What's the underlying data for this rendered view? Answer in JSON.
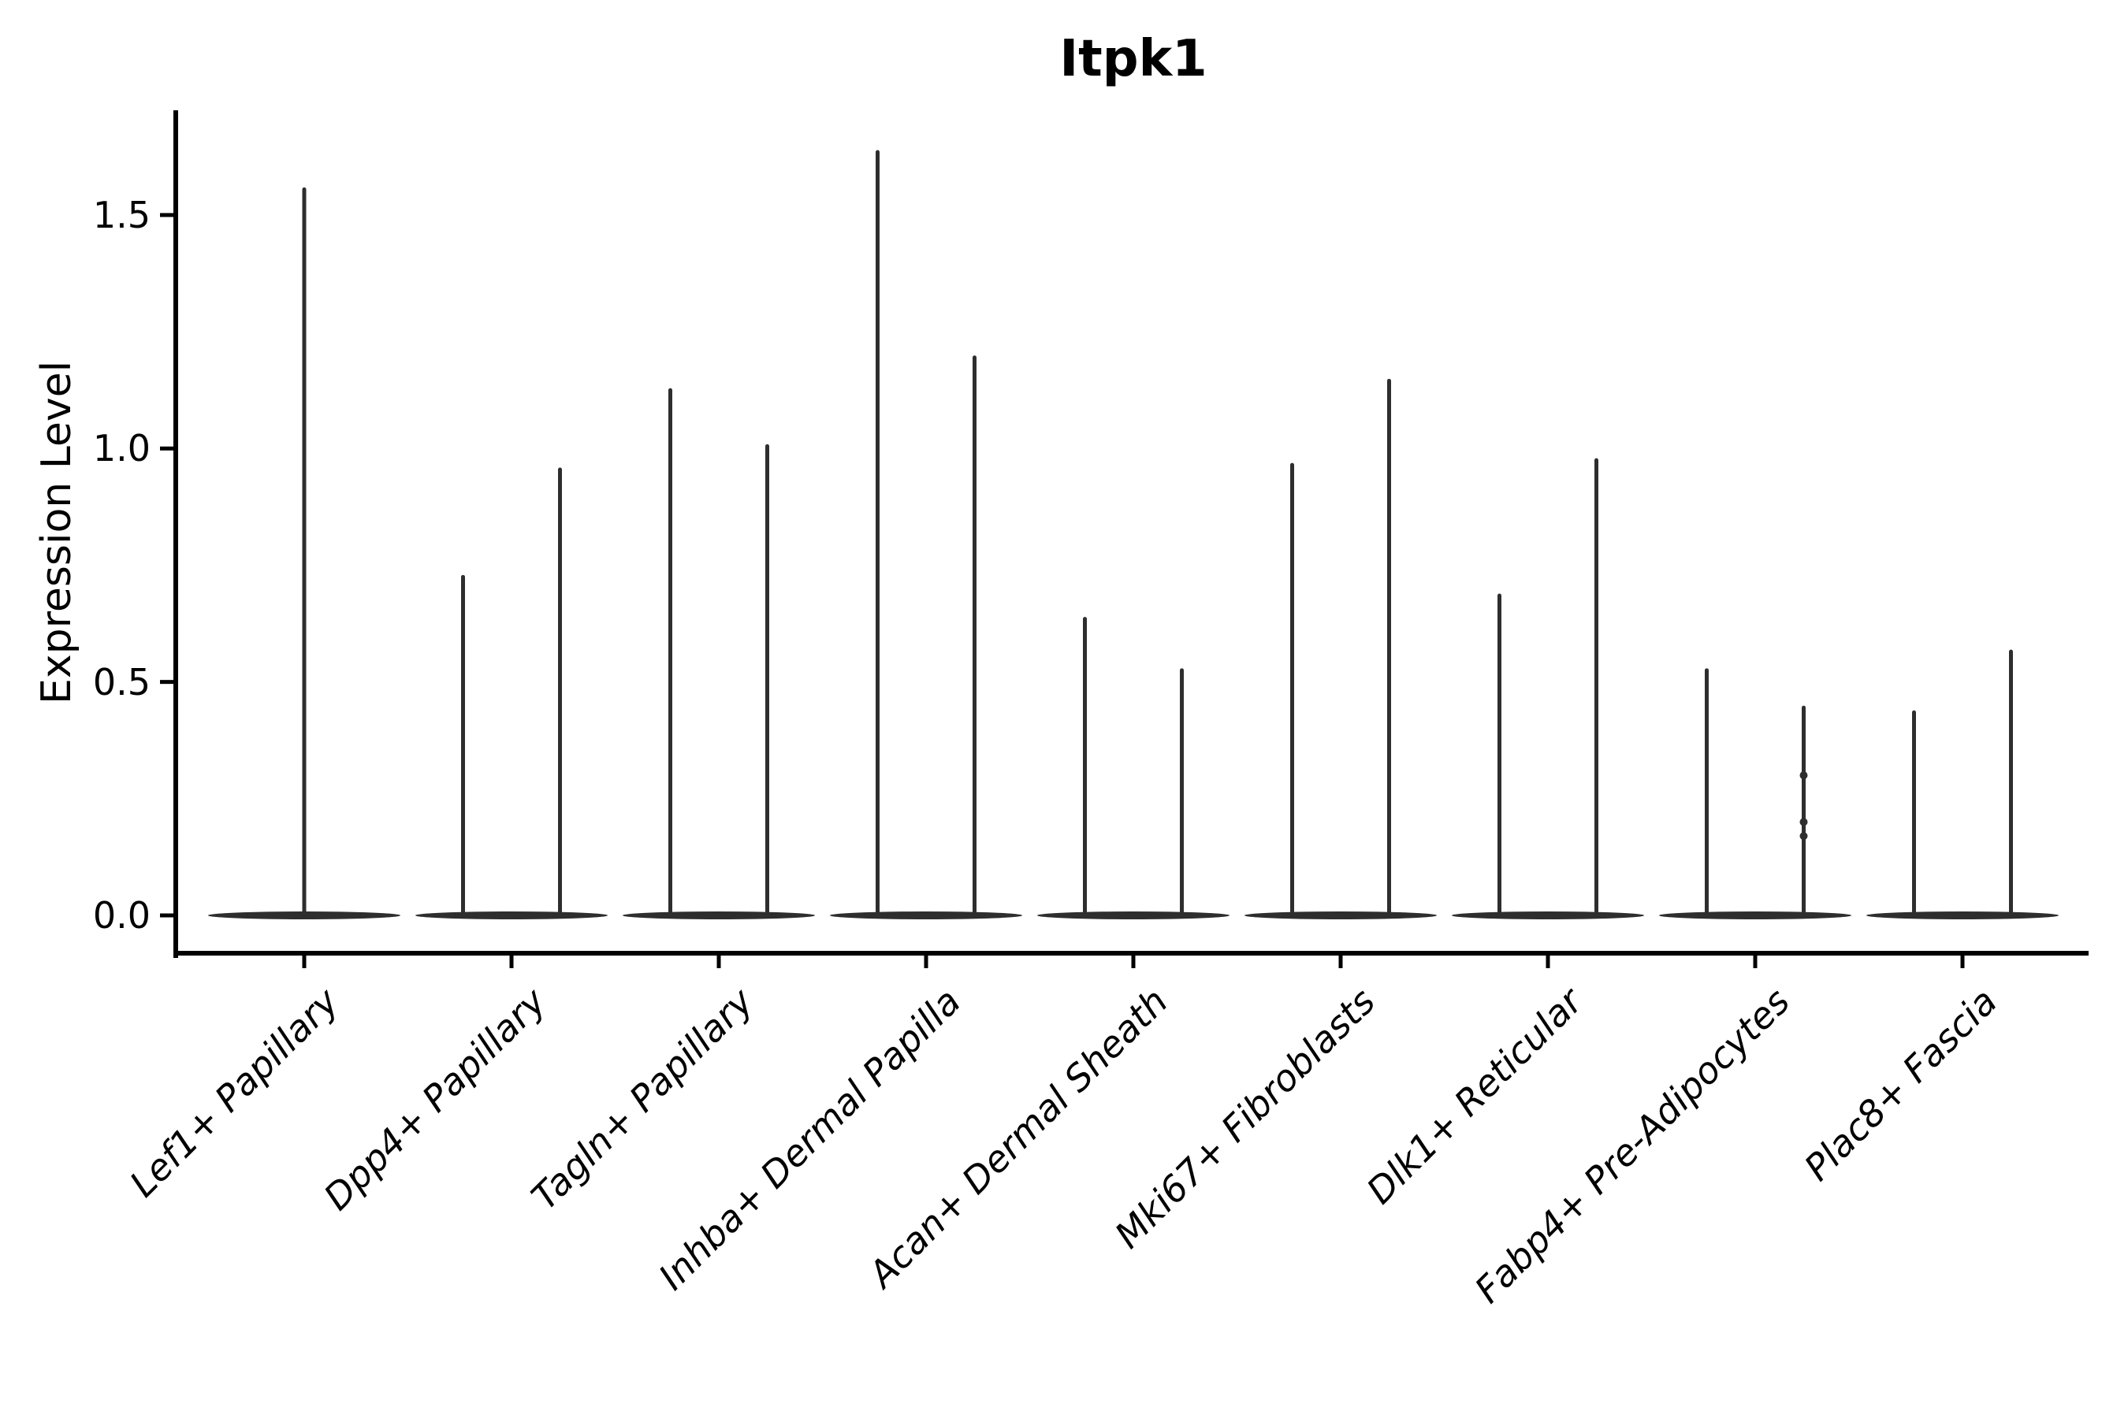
{
  "title": "Itpk1",
  "y_axis": {
    "label": "Expression Level",
    "tick_labels": [
      "0.0",
      "0.5",
      "1.0",
      "1.5"
    ],
    "tick_values": [
      0.0,
      0.5,
      1.0,
      1.5
    ]
  },
  "chart_data": {
    "type": "violin",
    "title": "Itpk1",
    "ylabel": "Expression Level",
    "xlabel": "",
    "ylim": [
      0,
      1.72
    ],
    "yticks": [
      0.0,
      0.5,
      1.0,
      1.5
    ],
    "grid": false,
    "legend": null,
    "categories": [
      "Lef1+ Papillary",
      "Dpp4+ Papillary",
      "Tagln+ Papillary",
      "Inhba+ Dermal Papilla",
      "Acan+ Dermal Sheath",
      "Mki67+ Fibroblasts",
      "Dlk1+ Reticular",
      "Fabp4+ Pre-Adipocytes",
      "Plac8+ Fascia"
    ],
    "violins": [
      {
        "category": "Lef1+ Papillary",
        "spike_maxima": [
          1.56
        ]
      },
      {
        "category": "Dpp4+ Papillary",
        "spike_maxima": [
          0.73,
          0.96
        ]
      },
      {
        "category": "Tagln+ Papillary",
        "spike_maxima": [
          1.13,
          1.01
        ]
      },
      {
        "category": "Inhba+ Dermal Papilla",
        "spike_maxima": [
          1.64,
          1.2
        ]
      },
      {
        "category": "Acan+ Dermal Sheath",
        "spike_maxima": [
          0.64,
          0.53
        ]
      },
      {
        "category": "Mki67+ Fibroblasts",
        "spike_maxima": [
          0.97,
          1.15
        ]
      },
      {
        "category": "Dlk1+ Reticular",
        "spike_maxima": [
          0.69,
          0.98
        ]
      },
      {
        "category": "Fabp4+ Pre-Adipocytes",
        "spike_maxima": [
          0.53,
          0.45
        ],
        "spike2_bumps": [
          0.3,
          0.2,
          0.17
        ]
      },
      {
        "category": "Plac8+ Fascia",
        "spike_maxima": [
          0.44,
          0.57
        ]
      }
    ],
    "baseline_value": 0.0,
    "colors": {
      "violin": "#2e2e2e",
      "axis": "#000000",
      "text": "#000000",
      "background": "#ffffff"
    }
  }
}
